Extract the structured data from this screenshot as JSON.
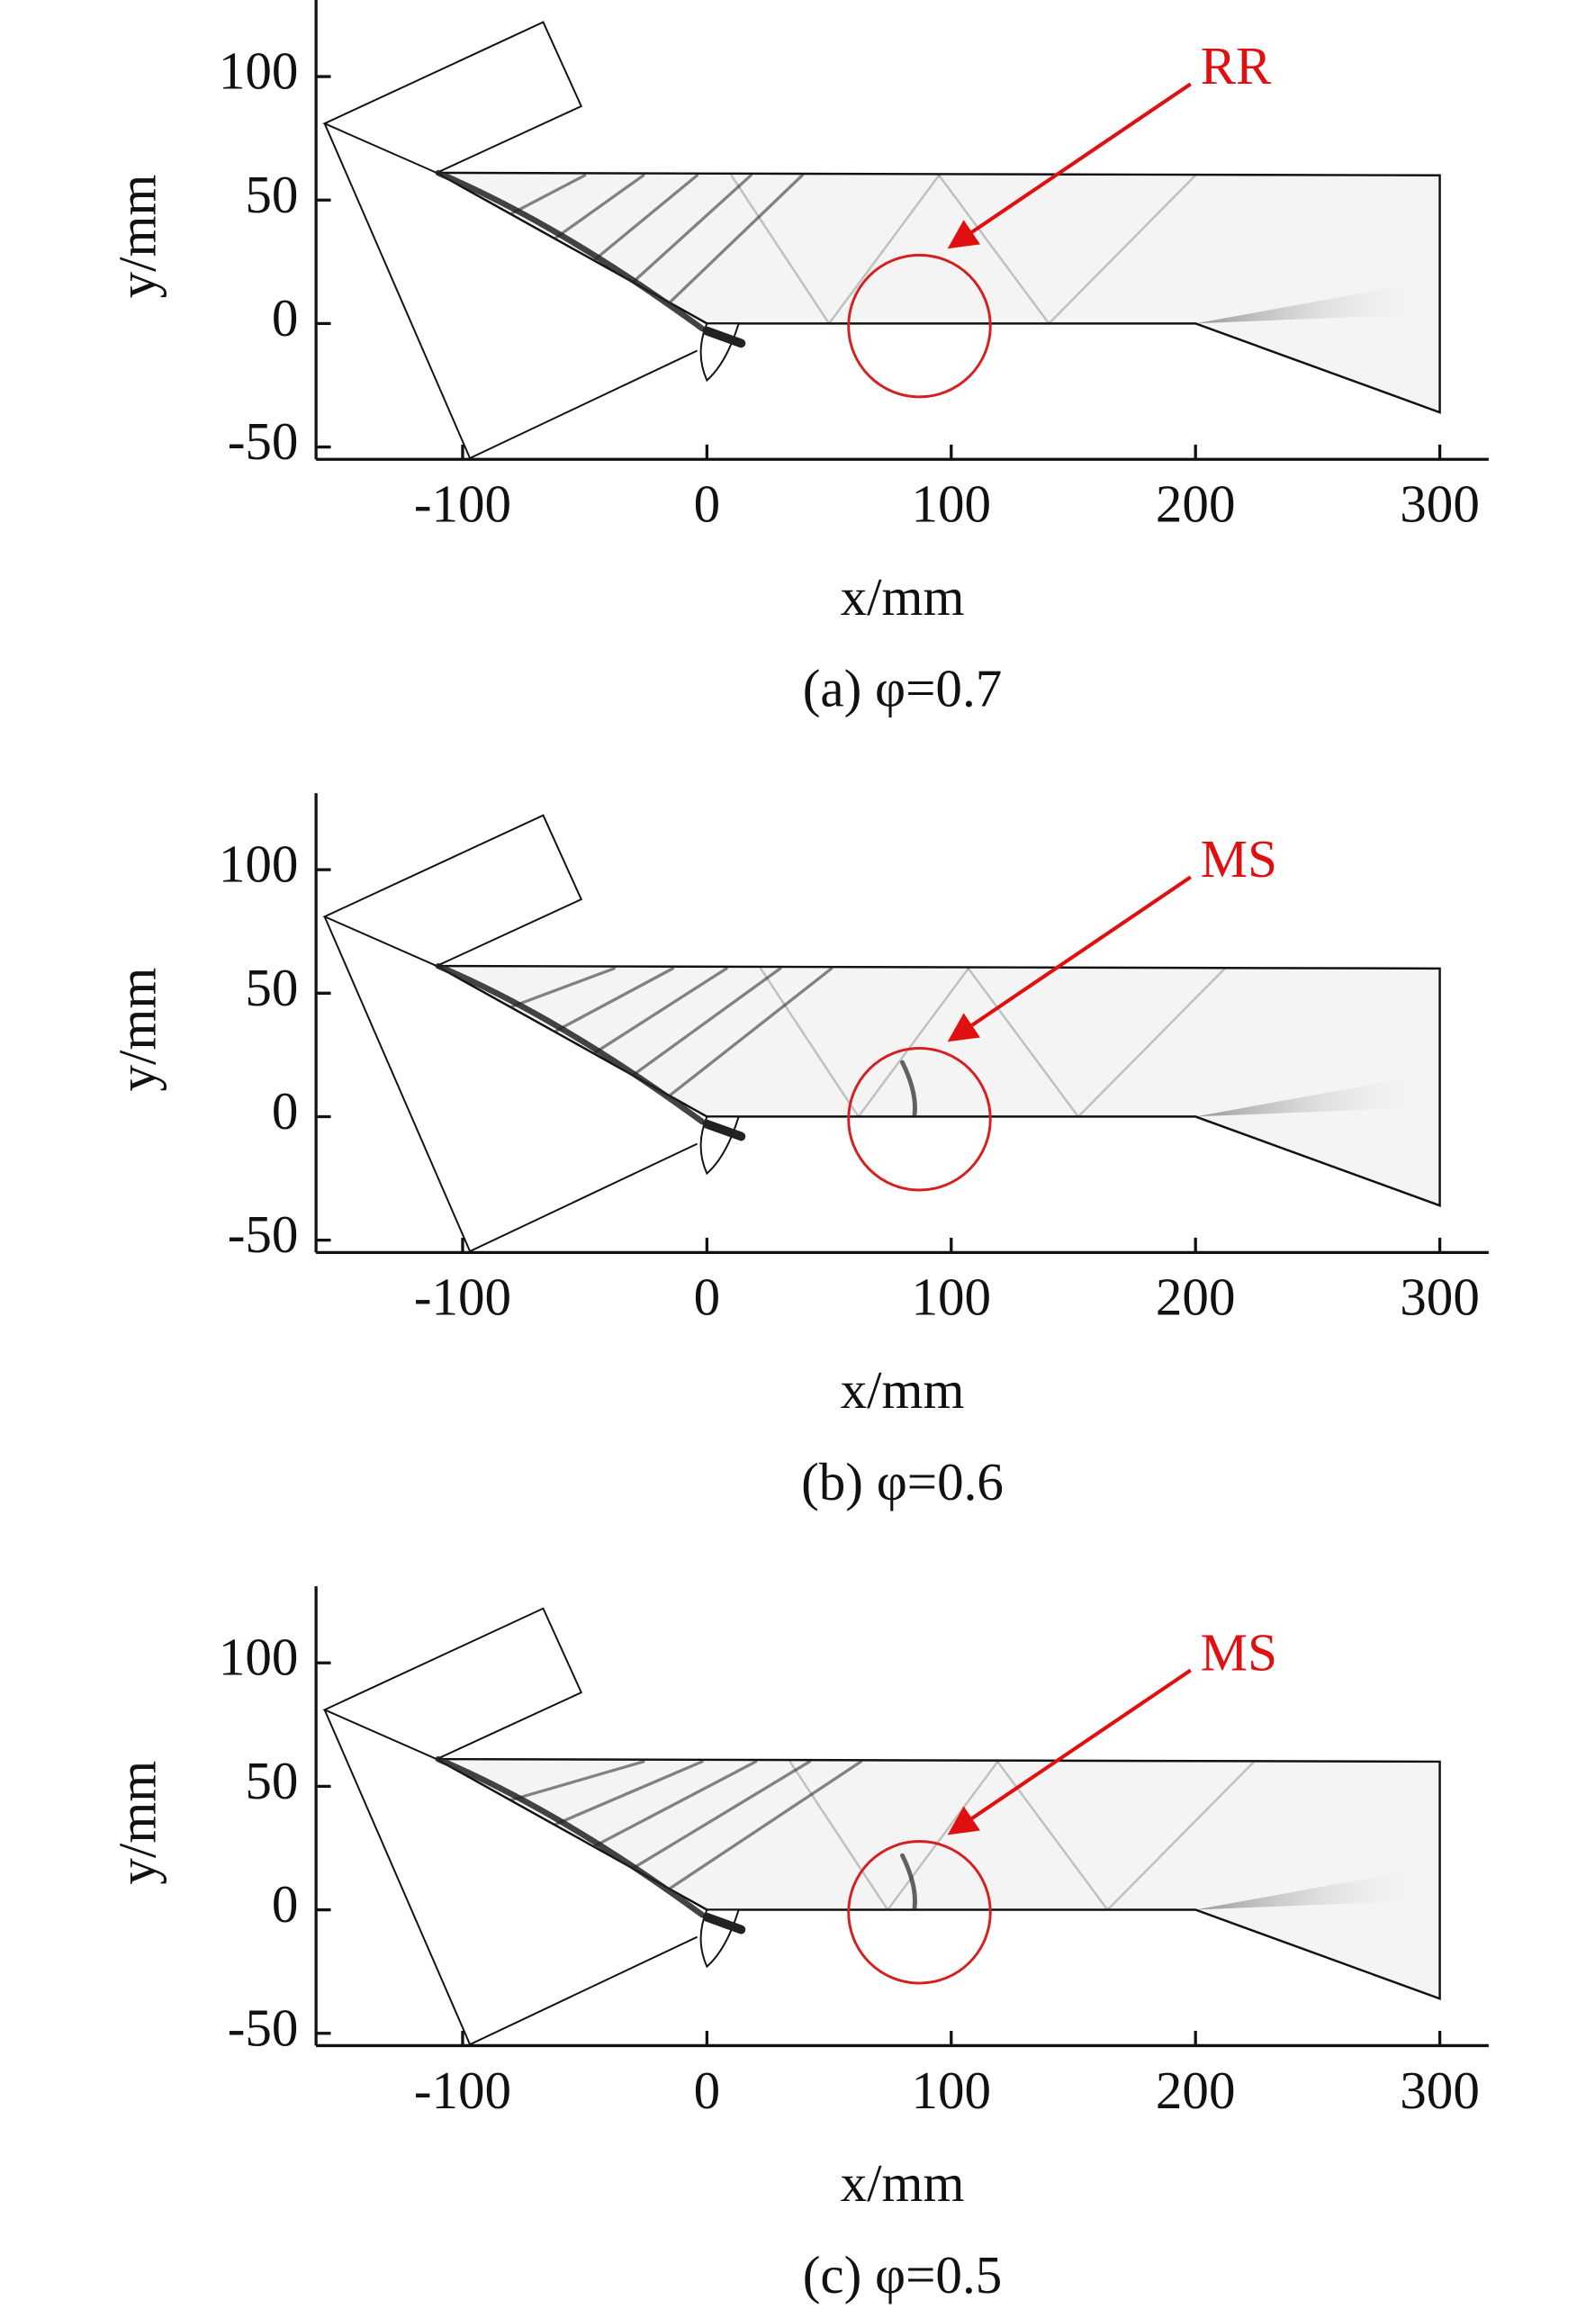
{
  "chart_data": [
    {
      "type": "contour",
      "caption": "(a) φ=0.7",
      "annotation": "RR",
      "xlabel": "x/mm",
      "ylabel": "y/mm",
      "xlim": [
        -160,
        320
      ],
      "ylim": [
        -55,
        131
      ],
      "xticks": [
        -100,
        0,
        100,
        200,
        300
      ],
      "yticks": [
        -50,
        0,
        50,
        100
      ]
    },
    {
      "type": "contour",
      "caption": "(b) φ=0.6",
      "annotation": "MS",
      "xlabel": "x/mm",
      "ylabel": "y/mm",
      "xlim": [
        -160,
        320
      ],
      "ylim": [
        -55,
        131
      ],
      "xticks": [
        -100,
        0,
        100,
        200,
        300
      ],
      "yticks": [
        -50,
        0,
        50,
        100
      ]
    },
    {
      "type": "contour",
      "caption": "(c) φ=0.5",
      "annotation": "MS",
      "xlabel": "x/mm",
      "ylabel": "y/mm",
      "xlim": [
        -160,
        320
      ],
      "ylim": [
        -55,
        131
      ],
      "xticks": [
        -100,
        0,
        100,
        200,
        300
      ],
      "yticks": [
        -50,
        0,
        50,
        100
      ]
    }
  ]
}
